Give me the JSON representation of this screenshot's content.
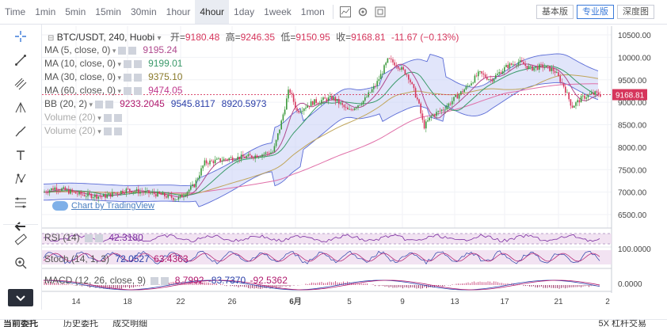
{
  "toolbar": {
    "timeframes": [
      "Time",
      "1min",
      "5min",
      "15min",
      "30min",
      "1hour",
      "4hour",
      "1day",
      "1week",
      "1mon"
    ],
    "active_timeframe": "4hour",
    "views": [
      "基本版",
      "专业版",
      "深度图"
    ],
    "active_view": "专业版"
  },
  "header": {
    "symbol": "BTC/USDT, 240, Huobi",
    "open_label": "开=",
    "open": "9180.48",
    "high_label": "高=",
    "high": "9246.35",
    "low_label": "低=",
    "low": "9150.95",
    "close_label": "收=",
    "close": "9168.81",
    "change": "-11.67 (−0.13%)"
  },
  "indicators": [
    {
      "label": "MA (5, close, 0)",
      "value": "9195.24",
      "color": "#b04a8e"
    },
    {
      "label": "MA (10, close, 0)",
      "value": "9199.01",
      "color": "#3a9a6a"
    },
    {
      "label": "MA (30, close, 0)",
      "value": "9375.10",
      "color": "#8a7a2a"
    },
    {
      "label": "MA (60, close, 0)",
      "value": "9474.05",
      "color": "#c0398c"
    },
    {
      "label": "BB (20, 2)",
      "values": [
        "9233.2045",
        "9545.8117",
        "8920.5973"
      ],
      "colors": [
        "#b0196e",
        "#2b3fa8",
        "#2b3fa8"
      ]
    },
    {
      "label": "Volume (20)"
    },
    {
      "label": "Volume (20)"
    }
  ],
  "watermark": "Chart by TradingView",
  "rsi": {
    "label": "RSI (14)",
    "value": "42.3180",
    "color": "#7b2da0",
    "scale": [
      "100.0000"
    ]
  },
  "stoch": {
    "label": "Stoch (14, 1, 3)",
    "values": [
      "72.0527",
      "63.4363"
    ],
    "colors": [
      "#2b3fa8",
      "#b0196e"
    ]
  },
  "macd": {
    "label": "MACD (12, 26, close, 9)",
    "values": [
      "8.7992",
      "-83.7370",
      "-92.5362"
    ],
    "colors": [
      "#b0196e",
      "#2b3fa8",
      "#b0196e"
    ],
    "scale": [
      "0.0000"
    ]
  },
  "price_axis": [
    "10500.00",
    "10000.00",
    "9500.00",
    "9000.00",
    "8500.00",
    "8000.00",
    "7500.00",
    "7000.00",
    "6500.00"
  ],
  "last_price": "9168.81",
  "date_axis": [
    "14",
    "18",
    "22",
    "26",
    "6月",
    "5",
    "9",
    "13",
    "17",
    "21",
    "2"
  ],
  "bottom_tabs": [
    "当前委托",
    "历史委托",
    "成交明细"
  ],
  "bottom_right": "5X 杠杆交易",
  "colors": {
    "up": "#3c9a3c",
    "down": "#d6365c",
    "bb_fill": "#c8cff5",
    "bb_line": "#5a6bd6",
    "ma_slow": "#e06fa8",
    "ma_fast": "#3a9a6a",
    "ma_mid": "#c0a55a"
  },
  "chart_data": {
    "type": "candlestick",
    "price_range": [
      6500,
      10500
    ],
    "x_range_ticks": [
      "14",
      "18",
      "22",
      "26",
      "6月",
      "5",
      "9",
      "13",
      "17",
      "21",
      "2"
    ],
    "approx_close_path": [
      {
        "x": "14",
        "y": 7000
      },
      {
        "x": "18",
        "y": 6950
      },
      {
        "x": "22",
        "y": 6900
      },
      {
        "x": "24",
        "y": 7700
      },
      {
        "x": "28",
        "y": 7800
      },
      {
        "x": "30",
        "y": 8600
      },
      {
        "x": "6月",
        "y": 8600
      },
      {
        "x": "5",
        "y": 9100
      },
      {
        "x": "7",
        "y": 9700
      },
      {
        "x": "8",
        "y": 9900
      },
      {
        "x": "9",
        "y": 9600
      },
      {
        "x": "10",
        "y": 8400
      },
      {
        "x": "12",
        "y": 8800
      },
      {
        "x": "13",
        "y": 9100
      },
      {
        "x": "15",
        "y": 9600
      },
      {
        "x": "17",
        "y": 9850
      },
      {
        "x": "19",
        "y": 9700
      },
      {
        "x": "20",
        "y": 9850
      },
      {
        "x": "21",
        "y": 9100
      },
      {
        "x": "22",
        "y": 9200
      },
      {
        "x": "23",
        "y": 9168.81
      }
    ]
  }
}
